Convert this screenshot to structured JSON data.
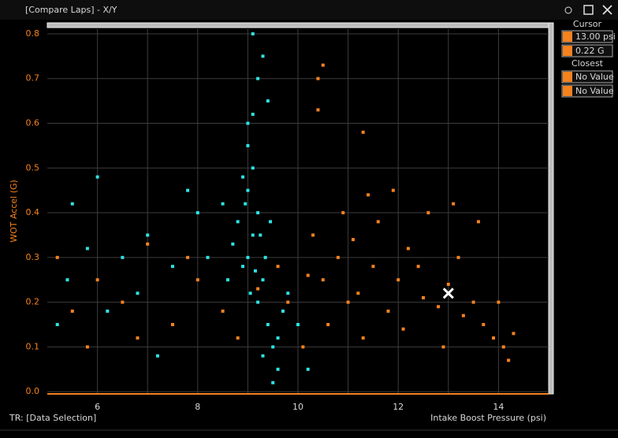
{
  "window": {
    "title": "[Compare Laps] - X/Y",
    "status": "TR: [Data Selection]"
  },
  "panel": {
    "cursor_heading": "Cursor",
    "closest_heading": "Closest",
    "closest_values": [
      "No Value",
      "No Value"
    ]
  },
  "chart_data": {
    "type": "scatter",
    "x_label": "Intake Boost Pressure (psi)",
    "y_label": "WOT Accel (G)",
    "xlim": [
      5,
      15
    ],
    "xticks": [
      6,
      8,
      10,
      12,
      14
    ],
    "x_minor_grid": [
      7,
      9,
      11,
      13
    ],
    "ylim": [
      -0.005,
      0.814
    ],
    "yticks": [
      {
        "value": 0,
        "label": "0.0"
      },
      0.1,
      0.2,
      0.3,
      0.4,
      0.5,
      0.6,
      0.7,
      0.8
    ],
    "grid": true,
    "cursor": {
      "x": 13,
      "y": 0.22,
      "x_label": "13.00 psi",
      "y_label": "0.22 G"
    },
    "series": [
      {
        "color": "#f5821f",
        "x": [
          10.5,
          10.8,
          11.0,
          11.2,
          11.5,
          11.8,
          12.0,
          12.2,
          12.5,
          12.8,
          13.0,
          13.2,
          13.5,
          13.7,
          13.9,
          14.1,
          14.3,
          14.2,
          13.6,
          13.1,
          12.6,
          11.6,
          10.9,
          10.3,
          10.6,
          11.3,
          12.1,
          12.9,
          11.9,
          11.4,
          10.5,
          10.4,
          10.4,
          11.3,
          10.1,
          9.8,
          9.6,
          9.2,
          8.5,
          8.0,
          7.5,
          7.0,
          6.5,
          6.0,
          5.5,
          5.2,
          5.8,
          6.8,
          7.8,
          8.8,
          12.4,
          13.3,
          10.2,
          14.0,
          11.1
        ],
        "values": [
          0.25,
          0.3,
          0.2,
          0.22,
          0.28,
          0.18,
          0.25,
          0.32,
          0.21,
          0.19,
          0.24,
          0.3,
          0.2,
          0.15,
          0.12,
          0.1,
          0.13,
          0.07,
          0.38,
          0.42,
          0.4,
          0.38,
          0.4,
          0.35,
          0.15,
          0.12,
          0.14,
          0.1,
          0.45,
          0.44,
          0.73,
          0.7,
          0.63,
          0.58,
          0.1,
          0.2,
          0.28,
          0.23,
          0.18,
          0.25,
          0.15,
          0.33,
          0.2,
          0.25,
          0.18,
          0.3,
          0.1,
          0.12,
          0.3,
          0.12,
          0.28,
          0.17,
          0.26,
          0.2,
          0.34
        ]
      },
      {
        "color": "#2fe3e3",
        "x": [
          9.0,
          9.1,
          9.2,
          8.9,
          9.3,
          9.0,
          9.1,
          8.8,
          9.2,
          9.4,
          9.5,
          9.6,
          9.3,
          9.7,
          8.7,
          9.0,
          9.1,
          9.2,
          9.1,
          9.3,
          9.4,
          9.0,
          8.6,
          8.5,
          9.8,
          10.0,
          10.2,
          9.5,
          7.8,
          7.5,
          7.0,
          6.5,
          6.0,
          5.5,
          5.2,
          5.4,
          6.2,
          7.2,
          8.0,
          8.2,
          5.8,
          6.8,
          9.35,
          9.05,
          9.25,
          8.95,
          9.15,
          9.45,
          8.9,
          9.6
        ],
        "values": [
          0.3,
          0.35,
          0.4,
          0.28,
          0.25,
          0.45,
          0.5,
          0.38,
          0.2,
          0.15,
          0.1,
          0.12,
          0.08,
          0.18,
          0.33,
          0.55,
          0.62,
          0.7,
          0.8,
          0.75,
          0.65,
          0.6,
          0.25,
          0.42,
          0.22,
          0.15,
          0.05,
          0.02,
          0.45,
          0.28,
          0.35,
          0.3,
          0.48,
          0.42,
          0.15,
          0.25,
          0.18,
          0.08,
          0.4,
          0.3,
          0.32,
          0.22,
          0.3,
          0.22,
          0.35,
          0.42,
          0.27,
          0.38,
          0.48,
          0.05
        ]
      }
    ]
  }
}
